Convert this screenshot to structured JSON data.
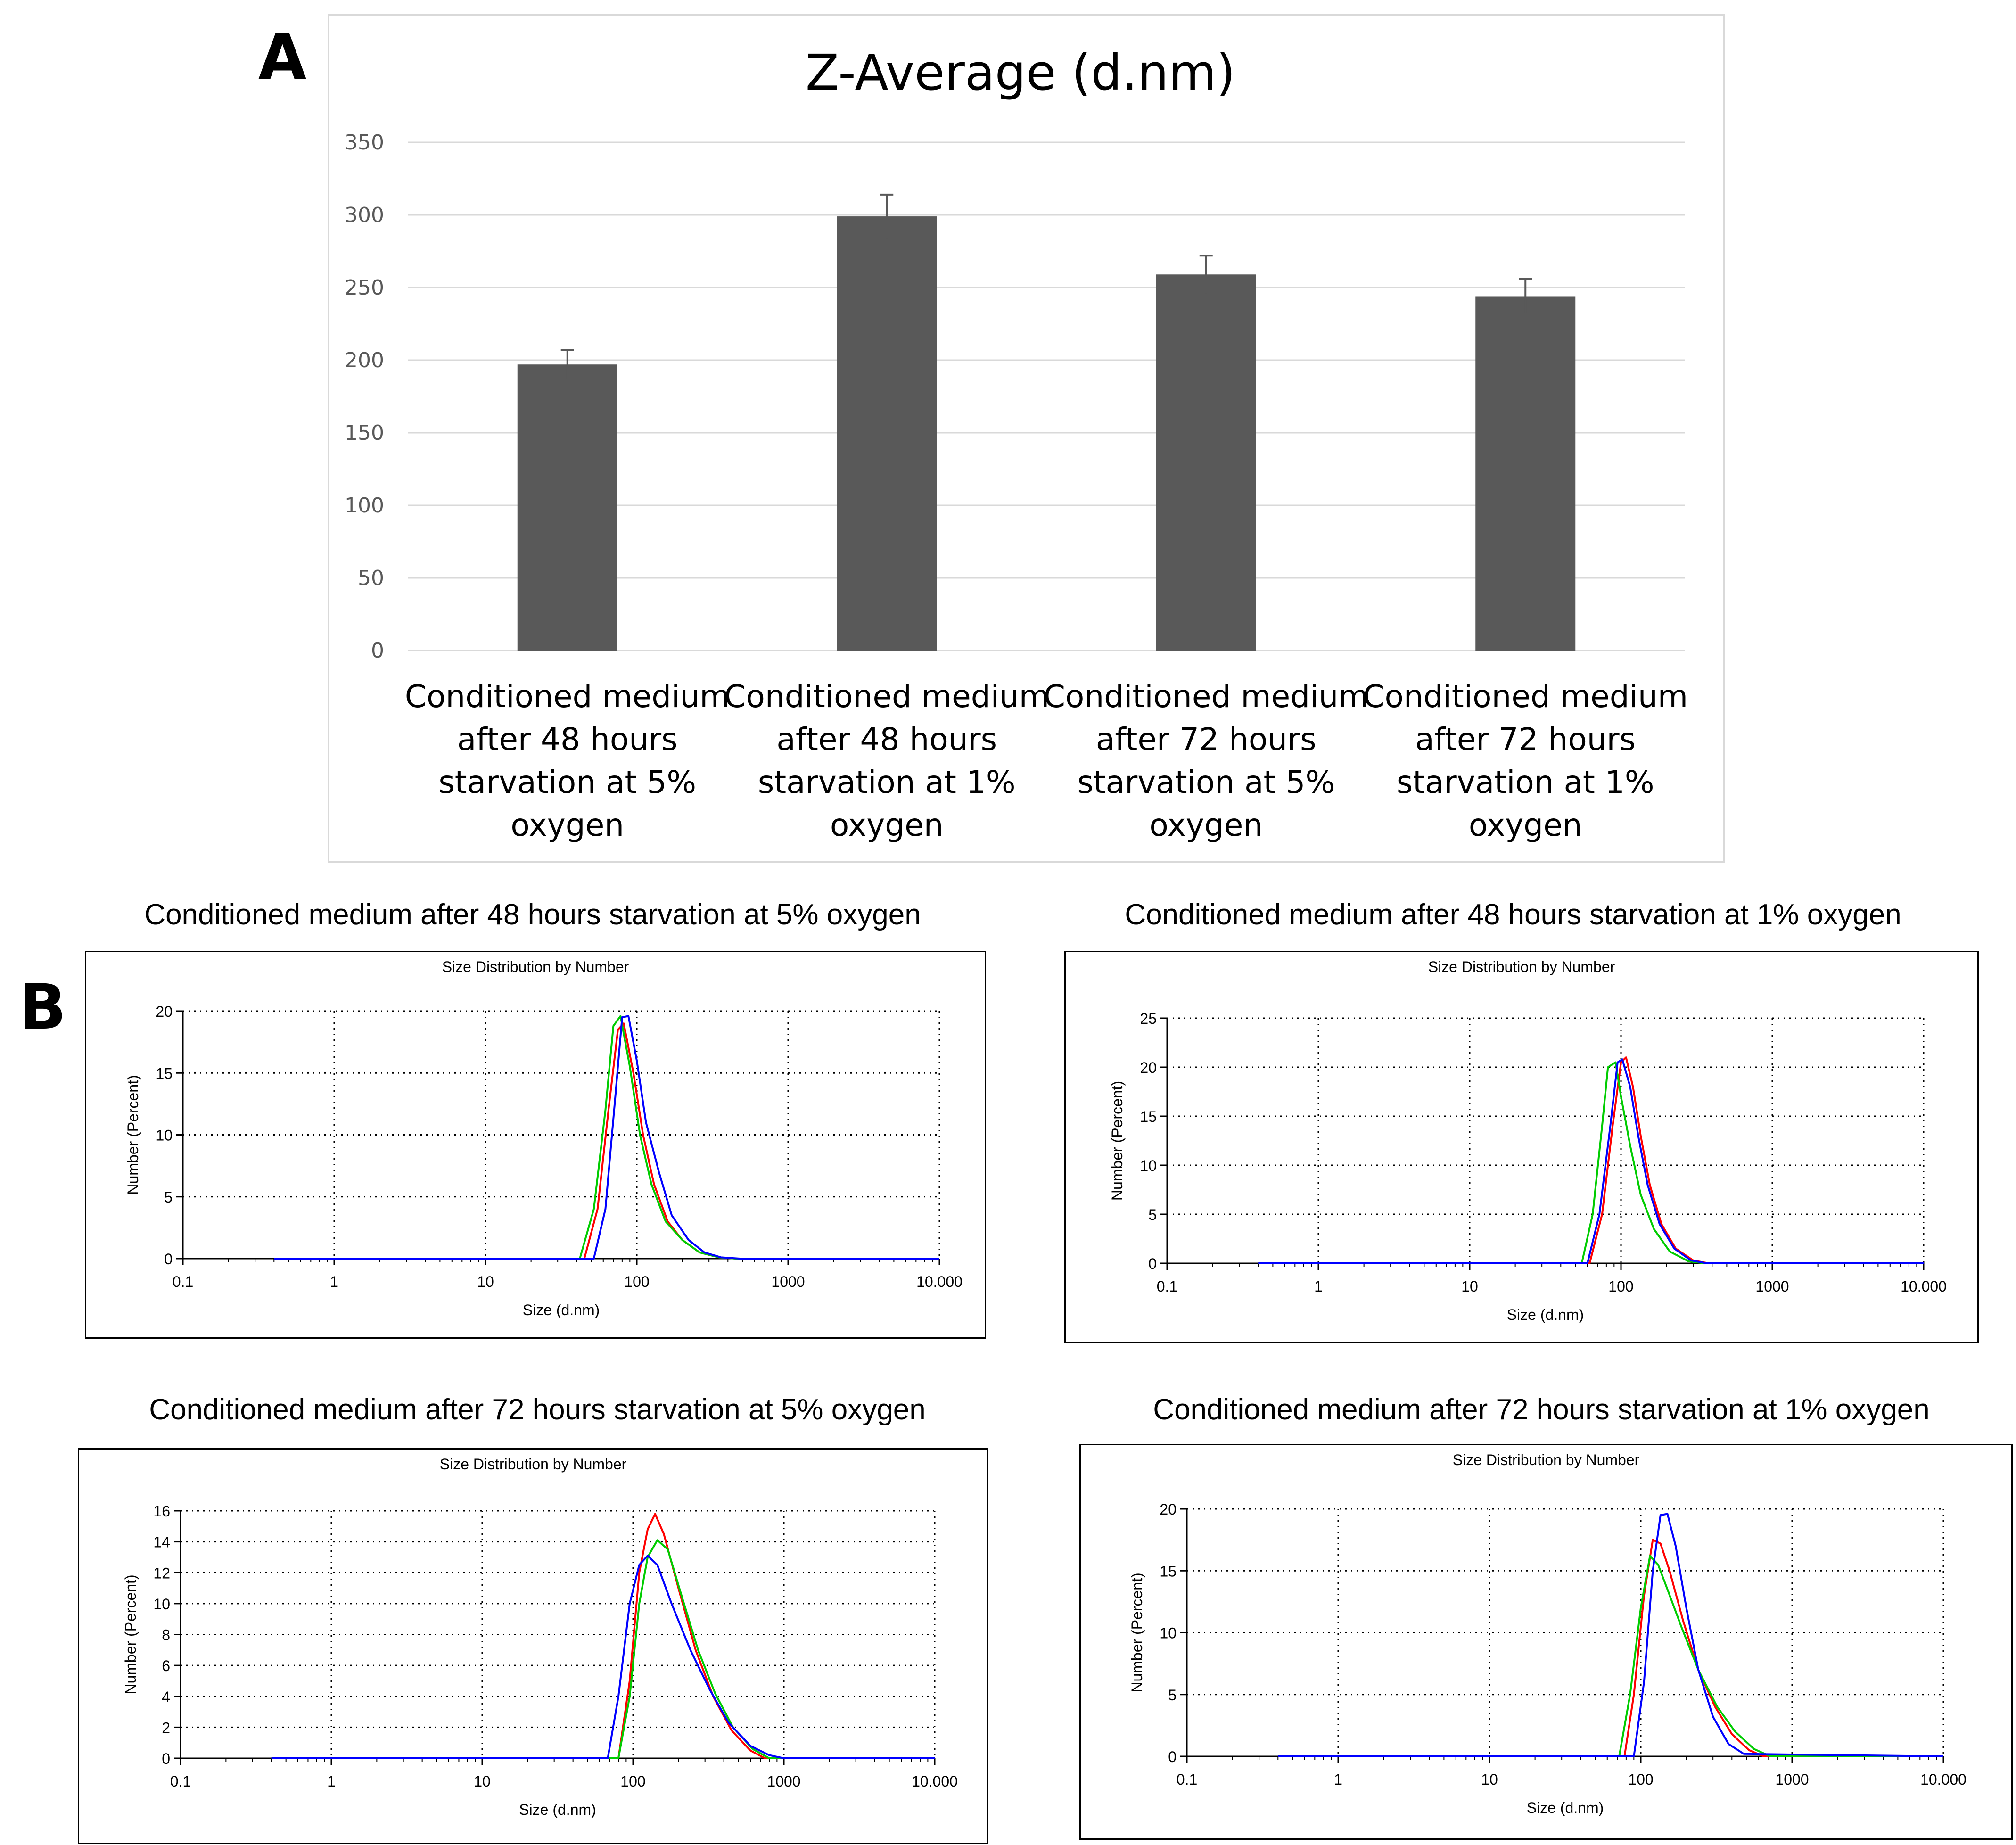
{
  "panelA": {
    "letter": "A",
    "chart_data": {
      "type": "bar",
      "title": "Z-Average (d.nm)",
      "categories": [
        "Conditioned medium after 48 hours starvation at 5% oxygen",
        "Conditioned medium after 48 hours starvation at 1% oxygen",
        "Conditioned medium after 72 hours starvation at 5% oxygen",
        "Conditioned medium after 72 hours starvation at 1% oxygen"
      ],
      "category_lines": [
        [
          "Conditioned medium",
          "after 48 hours",
          "starvation at 5%",
          "oxygen"
        ],
        [
          "Conditioned medium",
          "after 48 hours",
          "starvation at 1%",
          "oxygen"
        ],
        [
          "Conditioned medium",
          "after 72 hours",
          "starvation at 5%",
          "oxygen"
        ],
        [
          "Conditioned medium",
          "after 72 hours",
          "starvation at 1%",
          "oxygen"
        ]
      ],
      "values": [
        197,
        299,
        259,
        244
      ],
      "errors": [
        10,
        15,
        13,
        12
      ],
      "ylim": [
        0,
        350
      ],
      "yticks": [
        "0",
        "50",
        "100",
        "150",
        "200",
        "250",
        "300",
        "350"
      ],
      "xlabel": "",
      "ylabel": "",
      "grid": true,
      "bar_color": "#595959"
    }
  },
  "panelB": {
    "letter": "B",
    "chart_data": [
      {
        "type": "line",
        "heading": "Conditioned medium after 48 hours starvation at 5% oxygen",
        "title": "Size Distribution by Number",
        "xlabel": "Size (d.nm)",
        "ylabel": "Number (Percent)",
        "xscale": "log",
        "xlim": [
          0.1,
          10000
        ],
        "xticks": [
          "0.1",
          "1",
          "10",
          "100",
          "1000",
          "10.000"
        ],
        "ylim": [
          0,
          20
        ],
        "yticks": [
          "0",
          "5",
          "10",
          "15",
          "20"
        ],
        "grid": true,
        "series": [
          {
            "name": "red",
            "color": "#ff0000",
            "x": [
              0.4,
              45,
              55,
              65,
              75,
              82,
              95,
              110,
              130,
              160,
              200,
              260,
              350,
              450,
              10000
            ],
            "y": [
              0,
              0,
              4,
              12,
              18.5,
              19,
              15,
              10,
              6,
              3,
              1.5,
              0.5,
              0.1,
              0,
              0
            ]
          },
          {
            "name": "green",
            "color": "#00cc00",
            "x": [
              0.4,
              42,
              52,
              62,
              70,
              78,
              90,
              105,
              125,
              155,
              200,
              260,
              350,
              450,
              10000
            ],
            "y": [
              0,
              0,
              4,
              12,
              18.8,
              19.6,
              15.5,
              10,
              6,
              3,
              1.5,
              0.5,
              0.1,
              0,
              0
            ]
          },
          {
            "name": "blue",
            "color": "#0000ff",
            "x": [
              0.4,
              52,
              62,
              72,
              80,
              88,
              100,
              115,
              140,
              170,
              220,
              280,
              360,
              480,
              10000
            ],
            "y": [
              0,
              0,
              4,
              13,
              19.5,
              19.6,
              16,
              11,
              7,
              3.5,
              1.5,
              0.5,
              0.1,
              0,
              0
            ]
          }
        ]
      },
      {
        "type": "line",
        "heading": "Conditioned medium after 48 hours starvation at 1% oxygen",
        "title": "Size Distribution by Number",
        "xlabel": "Size (d.nm)",
        "ylabel": "Number (Percent)",
        "xscale": "log",
        "xlim": [
          0.1,
          10000
        ],
        "xticks": [
          "0.1",
          "1",
          "10",
          "100",
          "1000",
          "10.000"
        ],
        "ylim": [
          0,
          25
        ],
        "yticks": [
          "0",
          "5",
          "10",
          "15",
          "20",
          "25"
        ],
        "grid": true,
        "series": [
          {
            "name": "red",
            "color": "#ff0000",
            "x": [
              0.4,
              62,
              75,
              88,
              100,
              108,
              120,
              135,
              155,
              185,
              230,
              300,
              380,
              10000
            ],
            "y": [
              0,
              0,
              5,
              14,
              20.5,
              21,
              18,
              13,
              8,
              4,
              1.5,
              0.3,
              0,
              0
            ]
          },
          {
            "name": "green",
            "color": "#00cc00",
            "x": [
              0.4,
              55,
              65,
              75,
              82,
              92,
              100,
              115,
              135,
              165,
              210,
              280,
              360,
              10000
            ],
            "y": [
              0,
              0,
              5,
              14,
              20,
              20.5,
              17,
              12,
              7,
              3.5,
              1.2,
              0.2,
              0,
              0
            ]
          },
          {
            "name": "blue",
            "color": "#0000ff",
            "x": [
              0.4,
              60,
              72,
              85,
              95,
              102,
              115,
              130,
              150,
              180,
              225,
              290,
              370,
              10000
            ],
            "y": [
              0,
              0,
              5,
              14,
              20.5,
              20.8,
              18,
              13,
              8,
              4,
              1.5,
              0.3,
              0,
              0
            ]
          }
        ]
      },
      {
        "type": "line",
        "heading": "Conditioned medium after 72 hours starvation at 5% oxygen",
        "title": "Size Distribution by Number",
        "xlabel": "Size (d.nm)",
        "ylabel": "Number (Percent)",
        "xscale": "log",
        "xlim": [
          0.1,
          10000
        ],
        "xticks": [
          "0.1",
          "1",
          "10",
          "100",
          "1000",
          "10.000"
        ],
        "ylim": [
          0,
          16
        ],
        "yticks": [
          "0",
          "2",
          "4",
          "6",
          "8",
          "10",
          "12",
          "14",
          "16"
        ],
        "grid": true,
        "series": [
          {
            "name": "red",
            "color": "#ff0000",
            "x": [
              0.4,
              80,
              95,
              110,
              125,
              140,
              160,
              200,
              260,
              340,
              450,
              600,
              750,
              10000
            ],
            "y": [
              0,
              0,
              5,
              12,
              14.8,
              15.8,
              14.5,
              11,
              7,
              4,
              1.8,
              0.5,
              0,
              0
            ]
          },
          {
            "name": "green",
            "color": "#00cc00",
            "x": [
              0.4,
              80,
              95,
              110,
              125,
              145,
              170,
              210,
              270,
              350,
              460,
              620,
              800,
              10000
            ],
            "y": [
              0,
              0,
              4,
              10,
              13,
              14.1,
              13.5,
              10.5,
              7,
              4.2,
              2,
              0.6,
              0,
              0
            ]
          },
          {
            "name": "blue",
            "color": "#0000ff",
            "x": [
              0.4,
              68,
              80,
              95,
              110,
              125,
              145,
              180,
              240,
              320,
              430,
              600,
              800,
              1000,
              10000
            ],
            "y": [
              0,
              0,
              4,
              10,
              12.5,
              13.1,
              12.5,
              10,
              7,
              4.5,
              2.3,
              0.8,
              0.2,
              0,
              0
            ]
          }
        ]
      },
      {
        "type": "line",
        "heading": "Conditioned medium after 72 hours starvation at 1% oxygen",
        "title": "Size Distribution by Number",
        "xlabel": "Size (d.nm)",
        "ylabel": "Number (Percent)",
        "xscale": "log",
        "xlim": [
          0.1,
          10000
        ],
        "xticks": [
          "0.1",
          "1",
          "10",
          "100",
          "1000",
          "10.000"
        ],
        "ylim": [
          0,
          20
        ],
        "yticks": [
          "0",
          "5",
          "10",
          "15",
          "20"
        ],
        "grid": true,
        "series": [
          {
            "name": "red",
            "color": "#ff0000",
            "x": [
              0.4,
              78,
              90,
              105,
              120,
              135,
              155,
              190,
              240,
              310,
              400,
              520,
              650,
              10000
            ],
            "y": [
              0,
              0,
              5,
              13,
              17.5,
              17.2,
              15,
              11,
              7,
              4,
              1.8,
              0.5,
              0,
              0
            ]
          },
          {
            "name": "green",
            "color": "#00cc00",
            "x": [
              0.4,
              72,
              85,
              100,
              115,
              130,
              150,
              185,
              240,
              320,
              420,
              560,
              720,
              10000
            ],
            "y": [
              0,
              0,
              5,
              12,
              16.2,
              15.5,
              13.5,
              10.5,
              7,
              4,
              2,
              0.6,
              0,
              0
            ]
          },
          {
            "name": "blue",
            "color": "#0000ff",
            "x": [
              0.4,
              90,
              105,
              120,
              135,
              150,
              170,
              200,
              240,
              300,
              380,
              480,
              10000
            ],
            "y": [
              0,
              0,
              6,
              15,
              19.5,
              19.6,
              17,
              12,
              7,
              3.2,
              1,
              0.2,
              0
            ]
          }
        ]
      }
    ]
  }
}
